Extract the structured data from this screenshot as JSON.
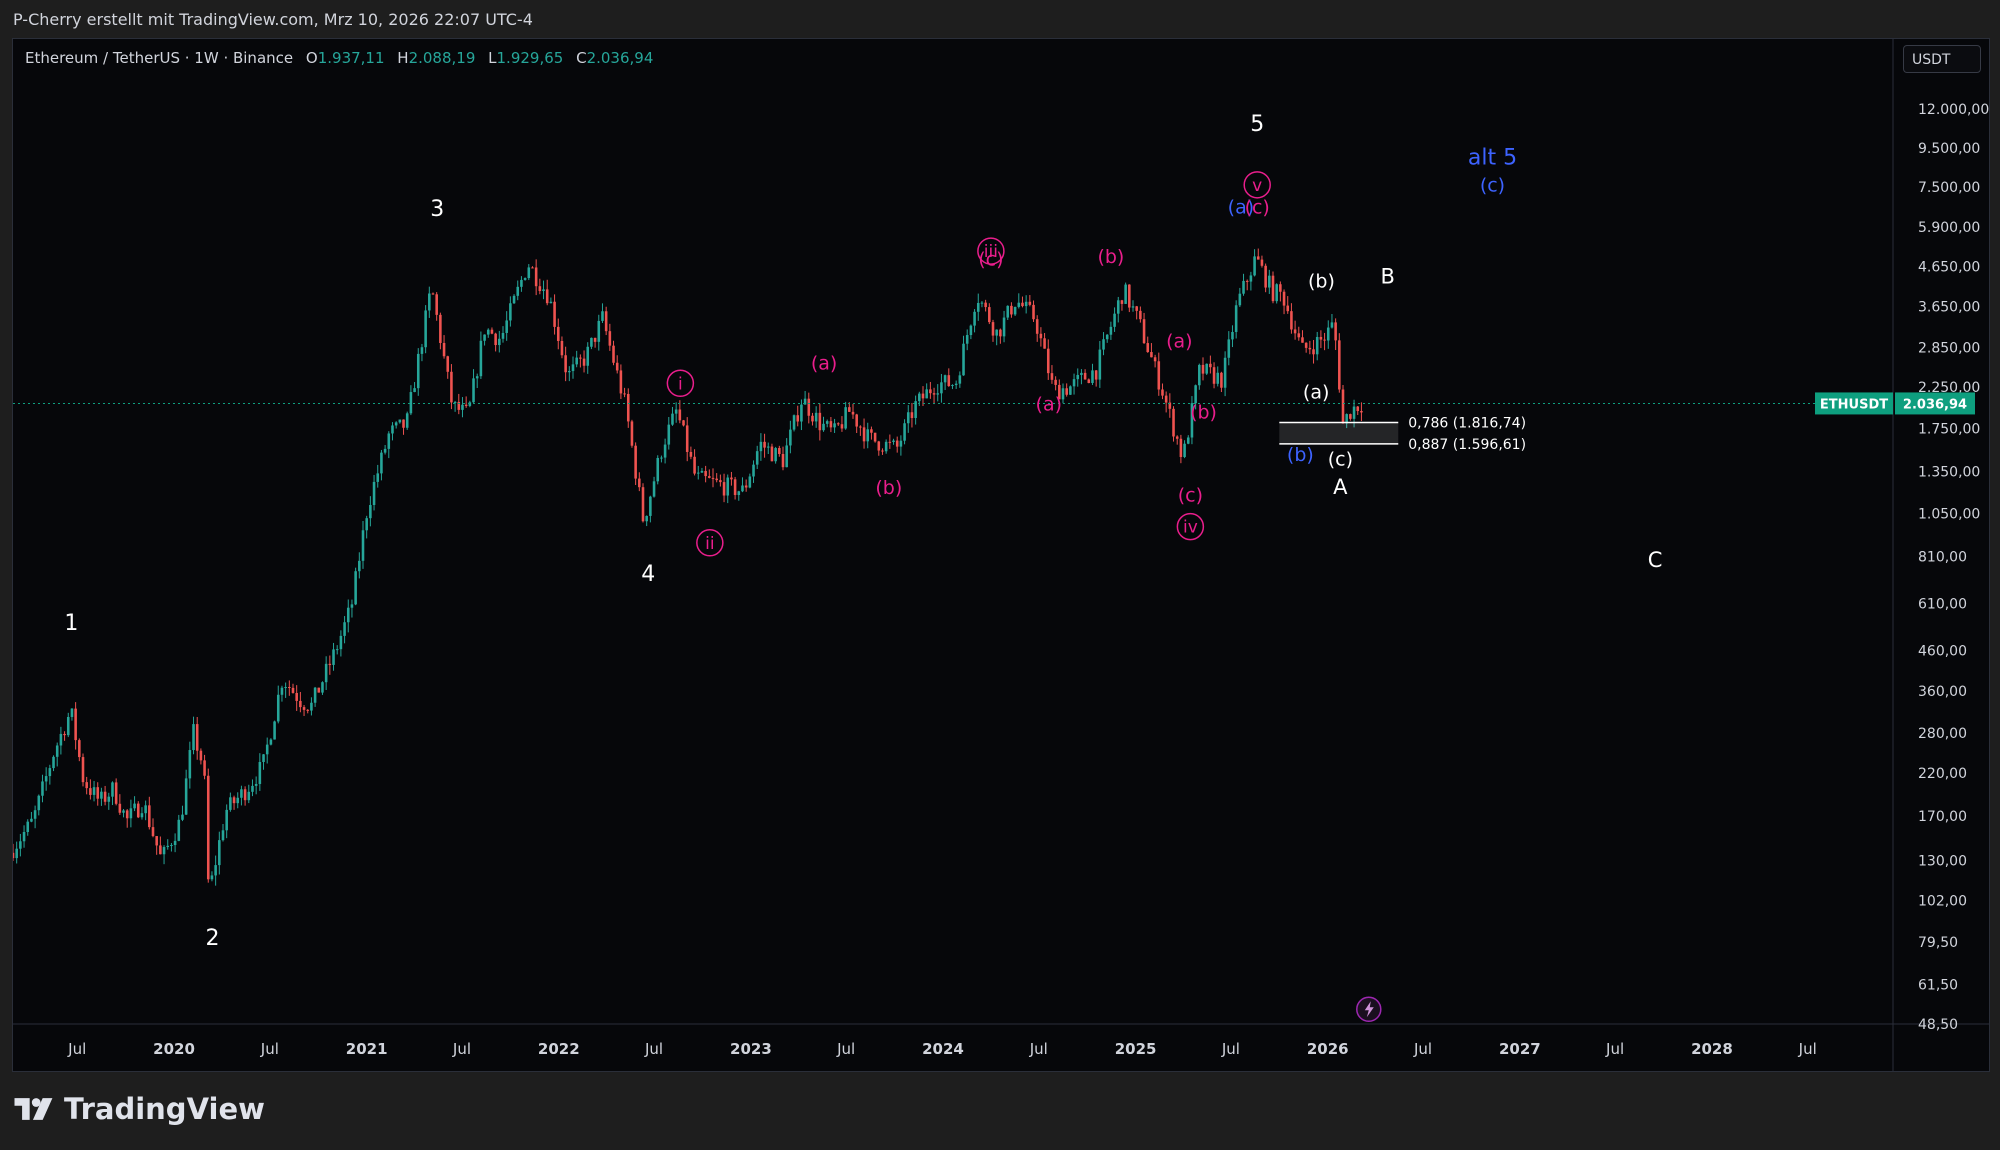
{
  "header": {
    "info": "P-Cherry erstellt mit TradingView.com, Mrz 10, 2026 22:07 UTC-4"
  },
  "legend": {
    "symbol": "Ethereum / TetherUS · 1W · Binance",
    "o_label": "O",
    "o": "1.937,11",
    "h_label": "H",
    "h": "2.088,19",
    "l_label": "L",
    "l": "1.929,65",
    "c_label": "C",
    "c": "2.036,94"
  },
  "currency": "USDT",
  "footer": {
    "brand": "TradingView",
    "icon": "tradingview-logo-icon"
  },
  "colors": {
    "up": "#26a69a",
    "down": "#ef5350",
    "magenta": "#e91e8c",
    "blue": "#3d63ff",
    "white": "#ffffff",
    "price_tag": "#0e9f7f"
  },
  "chart_data": {
    "type": "candlestick",
    "symbol": "ETHUSDT",
    "scale": "log",
    "ylim": [
      48.5,
      12000
    ],
    "y_ticks": [
      {
        "v": 12000,
        "t": "12.000,00"
      },
      {
        "v": 9500,
        "t": "9.500,00"
      },
      {
        "v": 7500,
        "t": "7.500,00"
      },
      {
        "v": 5900,
        "t": "5.900,00"
      },
      {
        "v": 4650,
        "t": "4.650,00"
      },
      {
        "v": 3650,
        "t": "3.650,00"
      },
      {
        "v": 2850,
        "t": "2.850,00"
      },
      {
        "v": 2250,
        "t": "2.250,00"
      },
      {
        "v": 1750,
        "t": "1.750,00"
      },
      {
        "v": 1350,
        "t": "1.350,00"
      },
      {
        "v": 1050,
        "t": "1.050,00"
      },
      {
        "v": 810,
        "t": "810,00"
      },
      {
        "v": 610,
        "t": "610,00"
      },
      {
        "v": 460,
        "t": "460,00"
      },
      {
        "v": 360,
        "t": "360,00"
      },
      {
        "v": 280,
        "t": "280,00"
      },
      {
        "v": 220,
        "t": "220,00"
      },
      {
        "v": 170,
        "t": "170,00"
      },
      {
        "v": 130,
        "t": "130,00"
      },
      {
        "v": 102,
        "t": "102,00"
      },
      {
        "v": 79.5,
        "t": "79,50"
      },
      {
        "v": 61.5,
        "t": "61,50"
      },
      {
        "v": 48.5,
        "t": "48,50"
      }
    ],
    "x_ticks": [
      {
        "d": "2019-07-01",
        "t": "Jul",
        "bold": false
      },
      {
        "d": "2020-01-01",
        "t": "2020",
        "bold": true
      },
      {
        "d": "2020-07-01",
        "t": "Jul",
        "bold": false
      },
      {
        "d": "2021-01-01",
        "t": "2021",
        "bold": true
      },
      {
        "d": "2021-07-01",
        "t": "Jul",
        "bold": false
      },
      {
        "d": "2022-01-01",
        "t": "2022",
        "bold": true
      },
      {
        "d": "2022-07-01",
        "t": "Jul",
        "bold": false
      },
      {
        "d": "2023-01-01",
        "t": "2023",
        "bold": true
      },
      {
        "d": "2023-07-01",
        "t": "Jul",
        "bold": false
      },
      {
        "d": "2024-01-01",
        "t": "2024",
        "bold": true
      },
      {
        "d": "2024-07-01",
        "t": "Jul",
        "bold": false
      },
      {
        "d": "2025-01-01",
        "t": "2025",
        "bold": true
      },
      {
        "d": "2025-07-01",
        "t": "Jul",
        "bold": false
      },
      {
        "d": "2026-01-01",
        "t": "2026",
        "bold": true
      },
      {
        "d": "2026-07-01",
        "t": "Jul",
        "bold": false
      },
      {
        "d": "2027-01-01",
        "t": "2027",
        "bold": true
      },
      {
        "d": "2027-07-01",
        "t": "Jul",
        "bold": false
      },
      {
        "d": "2028-01-01",
        "t": "2028",
        "bold": true
      },
      {
        "d": "2028-07-01",
        "t": "Jul",
        "bold": false
      }
    ],
    "x_range": [
      "2019-03-01",
      "2028-12-10"
    ],
    "price_path": [
      [
        "2019-03-01",
        136
      ],
      [
        "2019-04-15",
        165
      ],
      [
        "2019-05-25",
        250
      ],
      [
        "2019-06-26",
        320
      ],
      [
        "2019-07-20",
        210
      ],
      [
        "2019-08-20",
        185
      ],
      [
        "2019-09-15",
        200
      ],
      [
        "2019-10-10",
        165
      ],
      [
        "2019-11-10",
        185
      ],
      [
        "2019-12-15",
        130
      ],
      [
        "2020-01-20",
        165
      ],
      [
        "2020-02-14",
        280
      ],
      [
        "2020-03-05",
        225
      ],
      [
        "2020-03-14",
        105
      ],
      [
        "2020-04-15",
        175
      ],
      [
        "2020-05-25",
        200
      ],
      [
        "2020-06-25",
        230
      ],
      [
        "2020-08-01",
        390
      ],
      [
        "2020-09-05",
        340
      ],
      [
        "2020-09-25",
        330
      ],
      [
        "2020-11-10",
        460
      ],
      [
        "2020-12-10",
        600
      ],
      [
        "2021-01-10",
        1100
      ],
      [
        "2021-02-20",
        1700
      ],
      [
        "2021-03-25",
        1800
      ],
      [
        "2021-05-11",
        4100
      ],
      [
        "2021-06-20",
        2000
      ],
      [
        "2021-07-20",
        1900
      ],
      [
        "2021-08-20",
        3200
      ],
      [
        "2021-09-20",
        3000
      ],
      [
        "2021-11-10",
        4750
      ],
      [
        "2021-12-20",
        3900
      ],
      [
        "2022-01-25",
        2400
      ],
      [
        "2022-03-01",
        2700
      ],
      [
        "2022-04-01",
        3400
      ],
      [
        "2022-05-15",
        2000
      ],
      [
        "2022-06-18",
        1000
      ],
      [
        "2022-07-25",
        1600
      ],
      [
        "2022-08-20",
        1950
      ],
      [
        "2022-09-25",
        1300
      ],
      [
        "2022-11-10",
        1250
      ],
      [
        "2022-12-25",
        1200
      ],
      [
        "2023-01-25",
        1600
      ],
      [
        "2023-03-10",
        1450
      ],
      [
        "2023-04-15",
        2100
      ],
      [
        "2023-05-20",
        1800
      ],
      [
        "2023-06-15",
        1700
      ],
      [
        "2023-07-15",
        1950
      ],
      [
        "2023-08-20",
        1650
      ],
      [
        "2023-10-12",
        1550
      ],
      [
        "2023-11-15",
        2000
      ],
      [
        "2023-12-25",
        2300
      ],
      [
        "2024-02-01",
        2300
      ],
      [
        "2024-03-12",
        3950
      ],
      [
        "2024-04-20",
        3100
      ],
      [
        "2024-05-25",
        3800
      ],
      [
        "2024-07-01",
        3400
      ],
      [
        "2024-08-05",
        2200
      ],
      [
        "2024-09-06",
        2250
      ],
      [
        "2024-10-25",
        2500
      ],
      [
        "2024-12-16",
        4050
      ],
      [
        "2025-01-15",
        3300
      ],
      [
        "2025-02-28",
        2200
      ],
      [
        "2025-04-08",
        1460
      ],
      [
        "2025-05-10",
        2500
      ],
      [
        "2025-06-22",
        2350
      ],
      [
        "2025-07-20",
        3700
      ],
      [
        "2025-08-24",
        4900
      ],
      [
        "2025-09-25",
        4000
      ],
      [
        "2025-10-15",
        3900
      ],
      [
        "2025-11-20",
        2800
      ],
      [
        "2025-12-30",
        3000
      ],
      [
        "2026-01-20",
        3300
      ],
      [
        "2026-02-06",
        1800
      ],
      [
        "2026-02-20",
        1950
      ],
      [
        "2026-03-10",
        2036.94
      ]
    ],
    "last_price": {
      "value": 2036.94,
      "label": "ETHUSDT",
      "text": "2.036,94"
    },
    "fib_levels": [
      {
        "ratio": "0,786 (1.816,74)",
        "value": 1816.74
      },
      {
        "ratio": "0,887 (1.596,61)",
        "value": 1596.61
      }
    ],
    "wave_labels": [
      {
        "text": "1",
        "date": "2019-06-20",
        "price": 520,
        "color": "white",
        "size": 22
      },
      {
        "text": "2",
        "date": "2020-03-14",
        "price": 78,
        "color": "white",
        "size": 22
      },
      {
        "text": "3",
        "date": "2021-05-15",
        "price": 6300,
        "color": "white",
        "size": 22
      },
      {
        "text": "4",
        "date": "2022-06-20",
        "price": 700,
        "color": "white",
        "size": 22
      },
      {
        "text": "5",
        "date": "2025-08-20",
        "price": 10500,
        "color": "white",
        "size": 22
      },
      {
        "text": "(a)",
        "date": "2025-12-10",
        "price": 2100,
        "color": "white",
        "size": 19
      },
      {
        "text": "(b)",
        "date": "2025-12-20",
        "price": 4100,
        "color": "white",
        "size": 19
      },
      {
        "text": "(c)",
        "date": "2026-01-25",
        "price": 1400,
        "color": "white",
        "size": 19
      },
      {
        "text": "A",
        "date": "2026-01-25",
        "price": 1180,
        "color": "white",
        "size": 21
      },
      {
        "text": "B",
        "date": "2026-04-25",
        "price": 4200,
        "color": "white",
        "size": 21
      },
      {
        "text": "C",
        "date": "2027-09-15",
        "price": 760,
        "color": "white",
        "size": 21
      },
      {
        "text": "(b)",
        "date": "2025-11-10",
        "price": 1440,
        "color": "blue",
        "size": 19
      },
      {
        "text": "(a)",
        "date": "2025-07-20",
        "price": 6400,
        "color": "blue",
        "size": 19
      },
      {
        "text": "alt 5",
        "date": "2026-11-10",
        "price": 8600,
        "color": "blue",
        "size": 22
      },
      {
        "text": "(c)",
        "date": "2026-11-10",
        "price": 7300,
        "color": "blue",
        "size": 19
      },
      {
        "text": "(a)",
        "date": "2023-05-20",
        "price": 2500,
        "color": "magenta",
        "size": 19
      },
      {
        "text": "(b)",
        "date": "2023-09-20",
        "price": 1180,
        "color": "magenta",
        "size": 19
      },
      {
        "text": "(c)",
        "date": "2024-04-01",
        "price": 4680,
        "color": "magenta",
        "size": 19
      },
      {
        "text": "(a)",
        "date": "2024-07-20",
        "price": 1950,
        "color": "magenta",
        "size": 19
      },
      {
        "text": "(b)",
        "date": "2024-11-15",
        "price": 4750,
        "color": "magenta",
        "size": 19
      },
      {
        "text": "(a)",
        "date": "2025-03-25",
        "price": 2850,
        "color": "magenta",
        "size": 19
      },
      {
        "text": "(b)",
        "date": "2025-05-10",
        "price": 1860,
        "color": "magenta",
        "size": 19
      },
      {
        "text": "(c)",
        "date": "2025-04-15",
        "price": 1130,
        "color": "magenta",
        "size": 19
      },
      {
        "text": "(c)",
        "date": "2025-08-20",
        "price": 6400,
        "color": "magenta",
        "size": 19
      }
    ],
    "circled_labels": [
      {
        "text": "i",
        "date": "2022-08-20",
        "price": 2300,
        "color": "magenta"
      },
      {
        "text": "ii",
        "date": "2022-10-15",
        "price": 880,
        "color": "magenta"
      },
      {
        "text": "iii",
        "date": "2024-04-01",
        "price": 5100,
        "color": "magenta"
      },
      {
        "text": "iv",
        "date": "2025-04-15",
        "price": 970,
        "color": "magenta"
      },
      {
        "text": "v",
        "date": "2025-08-20",
        "price": 7600,
        "color": "magenta"
      }
    ],
    "marker_icon": {
      "name": "lightning-icon",
      "date": "2026-03-20",
      "price": 53
    }
  }
}
